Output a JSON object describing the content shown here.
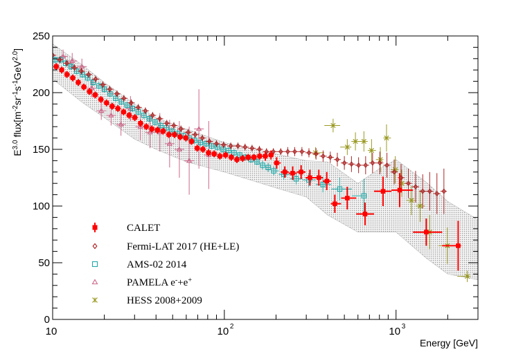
{
  "chart_data": {
    "type": "scatter",
    "xscale": "log",
    "xlim": [
      10,
      3000
    ],
    "ylim": [
      0,
      250
    ],
    "xlabel": "Energy [GeV]",
    "ylabel": "E^{3.0} flux[m^{-2}sr^{-1}s^{-1}GeV^{2.0}]",
    "ylabel_parts": [
      "E",
      "3.0",
      " flux[m",
      "-2",
      "sr",
      "-1",
      "s",
      "-1",
      "GeV",
      "2.0",
      "]"
    ],
    "x_ticks": [
      {
        "value": 10,
        "base": "10",
        "exp": ""
      },
      {
        "value": 100,
        "base": "10",
        "exp": "2"
      },
      {
        "value": 1000,
        "base": "10",
        "exp": "3"
      }
    ],
    "y_ticks": [
      "0",
      "50",
      "100",
      "150",
      "200",
      "250"
    ],
    "legend_position": "bottom-left",
    "band": {
      "description": "CALET systematic uncertainty band",
      "x": [
        10,
        15,
        20,
        30,
        40,
        60,
        100,
        200,
        300,
        400,
        600,
        800,
        1000,
        1500,
        2000,
        3000
      ],
      "upper": [
        243,
        224,
        209,
        190,
        178,
        168,
        156,
        146,
        140,
        139,
        120,
        133,
        141,
        121,
        104,
        88
      ],
      "lower": [
        212,
        191,
        178,
        159,
        150,
        139,
        130,
        116,
        108,
        92,
        77,
        77,
        77,
        54,
        40,
        35
      ]
    },
    "series": [
      {
        "name": "CALET",
        "label_parts": [
          "CALET"
        ],
        "marker": "filled-square",
        "color": "#ff0000",
        "points": [
          [
            10.5,
            223,
            3
          ],
          [
            11.3,
            220,
            3
          ],
          [
            12.1,
            216,
            3
          ],
          [
            13.1,
            213,
            3
          ],
          [
            14.1,
            209,
            3
          ],
          [
            15.2,
            205,
            3
          ],
          [
            16.4,
            201,
            3
          ],
          [
            17.7,
            198,
            3
          ],
          [
            19.1,
            194,
            3
          ],
          [
            20.6,
            191,
            3
          ],
          [
            22.2,
            188,
            3
          ],
          [
            24.0,
            186,
            3
          ],
          [
            25.9,
            183,
            3
          ],
          [
            27.9,
            180,
            3
          ],
          [
            30.1,
            178,
            3
          ],
          [
            32.5,
            173,
            3
          ],
          [
            35.1,
            170,
            3
          ],
          [
            37.8,
            168,
            3
          ],
          [
            40.8,
            167,
            3
          ],
          [
            44.0,
            166,
            3
          ],
          [
            47.5,
            163,
            3
          ],
          [
            51.3,
            163,
            3
          ],
          [
            55.3,
            161,
            3
          ],
          [
            59.7,
            160,
            3
          ],
          [
            64.4,
            157,
            3
          ],
          [
            69.5,
            151,
            3
          ],
          [
            75.0,
            150,
            3
          ],
          [
            80.9,
            147,
            3
          ],
          [
            87.3,
            146,
            3
          ],
          [
            94.2,
            144,
            3
          ],
          [
            101.6,
            145,
            3
          ],
          [
            109.7,
            143,
            3
          ],
          [
            118.3,
            141,
            3
          ],
          [
            127.7,
            142,
            3
          ],
          [
            137.8,
            143,
            3
          ],
          [
            148.7,
            143,
            3
          ],
          [
            160.5,
            144,
            3
          ],
          [
            173.2,
            144,
            4
          ],
          [
            186.9,
            145,
            4
          ],
          [
            201.6,
            138,
            5
          ],
          [
            225,
            130,
            5
          ],
          [
            250,
            129,
            6
          ],
          [
            280,
            130,
            6
          ],
          [
            315,
            125,
            7
          ],
          [
            355,
            125,
            7
          ],
          [
            395,
            122,
            8
          ],
          [
            440,
            102,
            8
          ],
          [
            520,
            107,
            10
          ],
          [
            660,
            93,
            10
          ],
          [
            840,
            113,
            13
          ],
          [
            1050,
            114,
            15
          ],
          [
            1500,
            77,
            12
          ],
          [
            2300,
            65,
            22
          ]
        ]
      },
      {
        "name": "Fermi-LAT 2017 (HE+LE)",
        "label_parts": [
          "Fermi-LAT 2017 (HE+LE)"
        ],
        "marker": "open-diamond",
        "color": "#aa2222",
        "points": [
          [
            10.0,
            233,
            3
          ],
          [
            11.0,
            229,
            3
          ],
          [
            12.1,
            226,
            3
          ],
          [
            13.4,
            222,
            3
          ],
          [
            14.7,
            219,
            3
          ],
          [
            16.2,
            216,
            3
          ],
          [
            17.8,
            212,
            3
          ],
          [
            19.6,
            207,
            3
          ],
          [
            21.5,
            203,
            3
          ],
          [
            23.7,
            199,
            3
          ],
          [
            26.0,
            195,
            3
          ],
          [
            28.7,
            191,
            3
          ],
          [
            31.5,
            187,
            3
          ],
          [
            34.7,
            184,
            3
          ],
          [
            38.2,
            180,
            3
          ],
          [
            42.0,
            177,
            3
          ],
          [
            46.2,
            173,
            3
          ],
          [
            50.8,
            171,
            3
          ],
          [
            55.9,
            168,
            3
          ],
          [
            61.5,
            165,
            3
          ],
          [
            67.6,
            163,
            3
          ],
          [
            74.4,
            160,
            3
          ],
          [
            81.8,
            157,
            3
          ],
          [
            90.0,
            155,
            3
          ],
          [
            99.0,
            154,
            3
          ],
          [
            109,
            153,
            3
          ],
          [
            120,
            153,
            3
          ],
          [
            132,
            152,
            3
          ],
          [
            145,
            151,
            3
          ],
          [
            160,
            150,
            3
          ],
          [
            176,
            148,
            3
          ],
          [
            193,
            148,
            3
          ],
          [
            213,
            148,
            3
          ],
          [
            234,
            148,
            4
          ],
          [
            257,
            148,
            4
          ],
          [
            283,
            148,
            4
          ],
          [
            311,
            147,
            4
          ],
          [
            342,
            146,
            5
          ],
          [
            376,
            144,
            5
          ],
          [
            414,
            143,
            5
          ],
          [
            455,
            141,
            6
          ],
          [
            500,
            138,
            6
          ],
          [
            550,
            137,
            7
          ],
          [
            605,
            136,
            7
          ],
          [
            665,
            136,
            8
          ],
          [
            730,
            138,
            9
          ],
          [
            805,
            138,
            10
          ],
          [
            885,
            136,
            11
          ],
          [
            975,
            130,
            11
          ],
          [
            1070,
            125,
            12
          ],
          [
            1180,
            120,
            13
          ],
          [
            1300,
            117,
            14
          ],
          [
            1430,
            113,
            15
          ],
          [
            1570,
            113,
            17
          ],
          [
            1730,
            111,
            18
          ],
          [
            1900,
            113,
            20
          ]
        ]
      },
      {
        "name": "AMS-02 2014",
        "label_parts": [
          "AMS-02 2014"
        ],
        "marker": "open-square",
        "color": "#22a8a8",
        "points": [
          [
            10.3,
            229,
            3
          ],
          [
            11.1,
            229,
            3
          ],
          [
            11.9,
            226,
            3
          ],
          [
            12.8,
            223,
            3
          ],
          [
            13.8,
            219,
            3
          ],
          [
            14.9,
            216,
            3
          ],
          [
            16.0,
            213,
            3
          ],
          [
            17.2,
            209,
            3
          ],
          [
            18.6,
            206,
            3
          ],
          [
            20.0,
            203,
            3
          ],
          [
            21.6,
            199,
            3
          ],
          [
            23.3,
            195,
            3
          ],
          [
            25.1,
            192,
            3
          ],
          [
            27.1,
            189,
            3
          ],
          [
            29.2,
            186,
            3
          ],
          [
            31.5,
            183,
            3
          ],
          [
            34.0,
            180,
            3
          ],
          [
            36.6,
            177,
            3
          ],
          [
            39.5,
            174,
            3
          ],
          [
            42.6,
            171,
            3
          ],
          [
            46.0,
            169,
            3
          ],
          [
            49.6,
            166,
            3
          ],
          [
            53.5,
            164,
            3
          ],
          [
            57.8,
            162,
            3
          ],
          [
            62.3,
            160,
            3
          ],
          [
            67.2,
            158,
            3
          ],
          [
            72.5,
            156,
            3
          ],
          [
            78.2,
            155,
            3
          ],
          [
            84.4,
            153,
            3
          ],
          [
            91.0,
            152,
            3
          ],
          [
            98.2,
            150,
            3
          ],
          [
            106,
            149,
            3
          ],
          [
            114,
            147,
            3
          ],
          [
            123,
            145,
            3
          ],
          [
            133,
            143,
            3
          ],
          [
            143,
            141,
            3
          ],
          [
            155,
            139,
            3
          ],
          [
            167,
            136,
            4
          ],
          [
            180,
            134,
            4
          ],
          [
            194,
            131,
            4
          ],
          [
            222,
            128,
            5
          ],
          [
            262,
            124,
            5
          ],
          [
            310,
            123,
            6
          ],
          [
            375,
            119,
            7
          ],
          [
            470,
            115,
            10
          ],
          [
            650,
            109,
            15
          ]
        ]
      },
      {
        "name": "PAMELA e-+e+",
        "label_parts": [
          "PAMELA e",
          "-",
          "+e",
          "+"
        ],
        "marker": "open-triangle",
        "color": "#cc6688",
        "points": [
          [
            11.5,
            232,
            6
          ],
          [
            13.0,
            228,
            7
          ],
          [
            14.8,
            223,
            7
          ],
          [
            16.9,
            204,
            8
          ],
          [
            19.2,
            184,
            8
          ],
          [
            21.9,
            180,
            9
          ],
          [
            25.0,
            172,
            10
          ],
          [
            28.4,
            186,
            11
          ],
          [
            32.4,
            170,
            12
          ],
          [
            36.9,
            165,
            14
          ],
          [
            42.1,
            165,
            17
          ],
          [
            48.0,
            155,
            21
          ],
          [
            54.7,
            150,
            25
          ],
          [
            62.4,
            140,
            30
          ],
          [
            71.1,
            168,
            35
          ],
          [
            81.1,
            145,
            30
          ]
        ]
      },
      {
        "name": "HESS 2008+2009",
        "label_parts": [
          "HESS 2008+2009"
        ],
        "marker": "star",
        "color": "#999922",
        "points": [
          [
            340,
            147,
            5
          ],
          [
            430,
            171,
            6
          ],
          [
            520,
            152,
            7
          ],
          [
            580,
            157,
            8
          ],
          [
            650,
            157,
            9
          ],
          [
            720,
            149,
            10
          ],
          [
            810,
            141,
            11
          ],
          [
            880,
            160,
            12
          ],
          [
            990,
            132,
            12
          ],
          [
            1080,
            120,
            12
          ],
          [
            1230,
            105,
            13
          ],
          [
            1380,
            100,
            14
          ],
          [
            1570,
            77,
            15
          ],
          [
            1990,
            65,
            16
          ],
          [
            2600,
            38,
            5
          ]
        ]
      }
    ]
  }
}
